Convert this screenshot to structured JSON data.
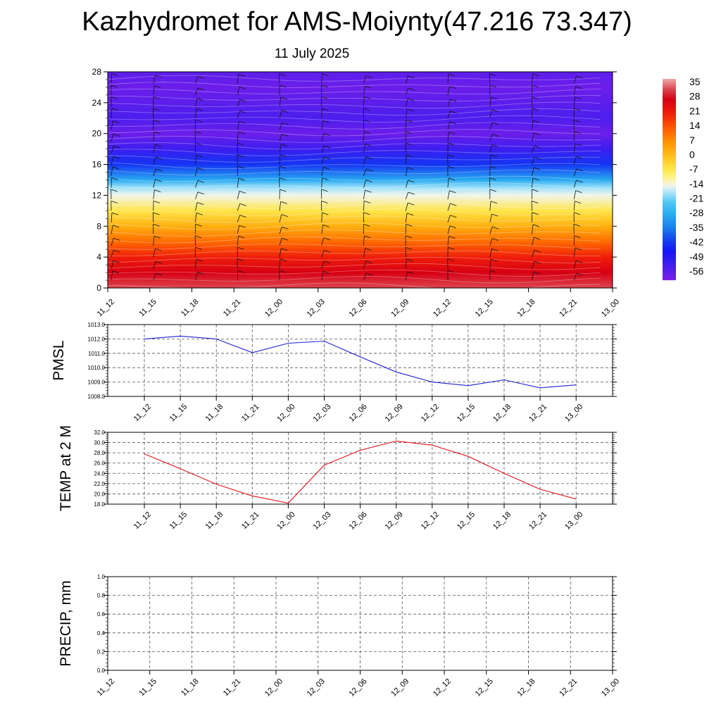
{
  "title": "Kazhydromet for AMS-Moiynty(47.216 73.347)",
  "subtitle": "11 July 2025",
  "colors": {
    "pmsl_line": "#1f1fd6",
    "temp_line": "#e0141e",
    "precip_line": "#2e6b2e",
    "grid": "#555555"
  },
  "chart_data": [
    {
      "type": "heatmap",
      "title": "",
      "x": [
        "11_12",
        "11_15",
        "11_18",
        "11_21",
        "12_00",
        "12_03",
        "12_06",
        "12_09",
        "12_12",
        "12_15",
        "12_18",
        "12_21",
        "13_00"
      ],
      "y_ticks": [
        0,
        4,
        8,
        12,
        16,
        20,
        24,
        28
      ],
      "ylim": [
        0,
        28
      ],
      "colorbar": {
        "labels": [
          35,
          28,
          21,
          14,
          7,
          0,
          -7,
          -14,
          -21,
          -28,
          -35,
          -42,
          -49,
          -56
        ],
        "range": [
          -60,
          38
        ]
      },
      "overlay": "wind barbs",
      "temperature_profile": {
        "height": [
          0,
          2,
          4,
          6,
          8,
          10,
          12,
          13,
          14,
          16,
          18,
          20,
          22,
          24,
          26,
          28
        ],
        "value": [
          33,
          28,
          21,
          12,
          3,
          -6,
          -14,
          -18,
          -28,
          -42,
          -52,
          -58,
          -54,
          -56,
          -58,
          -56
        ]
      }
    },
    {
      "type": "line",
      "ylabel": "PMSL",
      "x": [
        "11_12",
        "11_15",
        "11_18",
        "11_21",
        "12_00",
        "12_03",
        "12_06",
        "12_09",
        "12_12",
        "12_15",
        "12_18",
        "12_21",
        "13_00"
      ],
      "y_ticks": [
        "1008.0",
        "1009.0",
        "1010.0",
        "1011.0",
        "1012.0",
        "1013.0"
      ],
      "ylim": [
        1008.0,
        1013.0
      ],
      "series": [
        {
          "values": [
            1012.0,
            1012.2,
            1012.0,
            1011.05,
            1011.7,
            1011.85,
            1010.75,
            1009.7,
            1009.0,
            1008.75,
            1009.15,
            1008.6,
            1008.8
          ]
        }
      ],
      "grid": true
    },
    {
      "type": "line",
      "ylabel": "TEMP at 2 M",
      "x": [
        "11_12",
        "11_15",
        "11_18",
        "11_21",
        "12_00",
        "12_03",
        "12_06",
        "12_09",
        "12_12",
        "12_15",
        "12_18",
        "12_21",
        "13_00"
      ],
      "y_ticks": [
        "18.0",
        "20.0",
        "22.0",
        "24.0",
        "26.0",
        "28.0",
        "30.0",
        "32.0"
      ],
      "ylim": [
        18.0,
        32.0
      ],
      "series": [
        {
          "values": [
            27.8,
            24.9,
            21.9,
            19.6,
            18.2,
            25.6,
            28.5,
            30.3,
            29.5,
            27.3,
            24.0,
            20.9,
            19.0
          ]
        }
      ],
      "grid": true
    },
    {
      "type": "line",
      "ylabel": "PRECIP, mm",
      "x": [
        "11_12",
        "11_15",
        "11_18",
        "11_21",
        "12_00",
        "12_03",
        "12_06",
        "12_09",
        "12_12",
        "12_15",
        "12_18",
        "12_21",
        "13_00"
      ],
      "y_ticks": [
        "0.0",
        "0.2",
        "0.4",
        "0.6",
        "0.8",
        "1.0"
      ],
      "ylim": [
        0.0,
        1.0
      ],
      "series": [
        {
          "values": [
            0,
            0,
            0,
            0,
            0,
            0,
            0,
            0,
            0,
            0,
            0,
            0,
            0
          ]
        }
      ],
      "grid": true
    }
  ]
}
